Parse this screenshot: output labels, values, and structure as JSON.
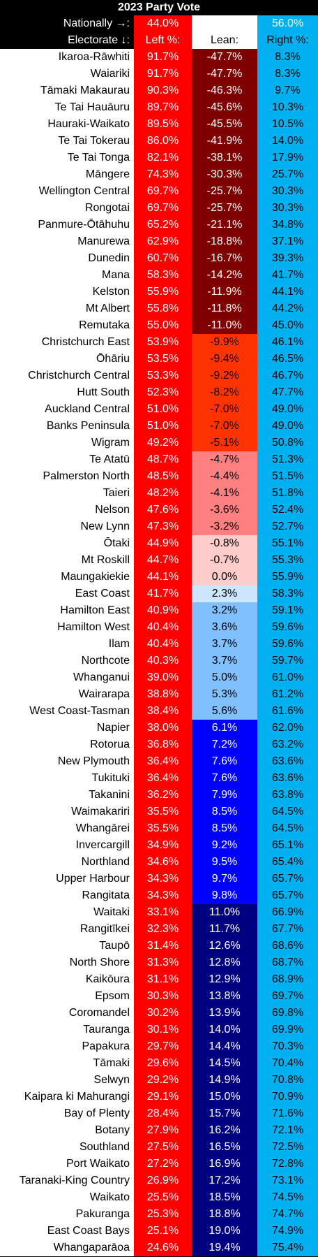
{
  "title": "2023 Party Vote",
  "nationally_label": "Nationally →:",
  "electorate_label": "Electorate ↓:",
  "national_left": "44.0%",
  "national_right": "56.0%",
  "header_left": "Left %:",
  "header_lean": "Lean:",
  "header_right": "Right %:",
  "colors": {
    "left": "#ff0000",
    "right": "#00b0f0",
    "lean_scale": [
      {
        "min": 10,
        "bg": "#7f0000",
        "fg": "#ffffff"
      },
      {
        "min": 5,
        "bg": "#ff3300",
        "fg": "#000000"
      },
      {
        "min": 2,
        "bg": "#ff8080",
        "fg": "#000000"
      },
      {
        "min": 0,
        "bg": "#ffcccc",
        "fg": "#000000"
      },
      {
        "min": -2.5,
        "bg": "#cce6ff",
        "fg": "#000000"
      },
      {
        "min": -6,
        "bg": "#80c0ff",
        "fg": "#000000"
      },
      {
        "min": -10,
        "bg": "#0000ff",
        "fg": "#ffffff"
      },
      {
        "min": -100,
        "bg": "#000080",
        "fg": "#ffffff"
      }
    ]
  },
  "chart_data": {
    "type": "table",
    "title": "2023 Party Vote",
    "columns": [
      "Electorate",
      "Left %",
      "Lean",
      "Right %"
    ],
    "national": {
      "left": 44.0,
      "right": 56.0
    },
    "rows": [
      {
        "name": "Ikaroa-Rāwhiti",
        "left": "91.7%",
        "lean": "-47.7%",
        "right": "8.3%"
      },
      {
        "name": "Waiariki",
        "left": "91.7%",
        "lean": "-47.7%",
        "right": "8.3%"
      },
      {
        "name": "Tāmaki Makaurau",
        "left": "90.3%",
        "lean": "-46.3%",
        "right": "9.7%"
      },
      {
        "name": "Te Tai Hauāuru",
        "left": "89.7%",
        "lean": "-45.6%",
        "right": "10.3%"
      },
      {
        "name": "Hauraki-Waikato",
        "left": "89.5%",
        "lean": "-45.5%",
        "right": "10.5%"
      },
      {
        "name": "Te Tai Tokerau",
        "left": "86.0%",
        "lean": "-41.9%",
        "right": "14.0%"
      },
      {
        "name": "Te Tai Tonga",
        "left": "82.1%",
        "lean": "-38.1%",
        "right": "17.9%"
      },
      {
        "name": "Māngere",
        "left": "74.3%",
        "lean": "-30.3%",
        "right": "25.7%"
      },
      {
        "name": "Wellington Central",
        "left": "69.7%",
        "lean": "-25.7%",
        "right": "30.3%"
      },
      {
        "name": "Rongotai",
        "left": "69.7%",
        "lean": "-25.7%",
        "right": "30.3%"
      },
      {
        "name": "Panmure-Ōtāhuhu",
        "left": "65.2%",
        "lean": "-21.1%",
        "right": "34.8%"
      },
      {
        "name": "Manurewa",
        "left": "62.9%",
        "lean": "-18.8%",
        "right": "37.1%"
      },
      {
        "name": "Dunedin",
        "left": "60.7%",
        "lean": "-16.7%",
        "right": "39.3%"
      },
      {
        "name": "Mana",
        "left": "58.3%",
        "lean": "-14.2%",
        "right": "41.7%"
      },
      {
        "name": "Kelston",
        "left": "55.9%",
        "lean": "-11.9%",
        "right": "44.1%"
      },
      {
        "name": "Mt Albert",
        "left": "55.8%",
        "lean": "-11.8%",
        "right": "44.2%"
      },
      {
        "name": "Remutaka",
        "left": "55.0%",
        "lean": "-11.0%",
        "right": "45.0%"
      },
      {
        "name": "Christchurch East",
        "left": "53.9%",
        "lean": "-9.9%",
        "right": "46.1%"
      },
      {
        "name": "Ōhāriu",
        "left": "53.5%",
        "lean": "-9.4%",
        "right": "46.5%"
      },
      {
        "name": "Christchurch Central",
        "left": "53.3%",
        "lean": "-9.2%",
        "right": "46.7%"
      },
      {
        "name": "Hutt South",
        "left": "52.3%",
        "lean": "-8.2%",
        "right": "47.7%"
      },
      {
        "name": "Auckland Central",
        "left": "51.0%",
        "lean": "-7.0%",
        "right": "49.0%"
      },
      {
        "name": "Banks Peninsula",
        "left": "51.0%",
        "lean": "-7.0%",
        "right": "49.0%"
      },
      {
        "name": "Wigram",
        "left": "49.2%",
        "lean": "-5.1%",
        "right": "50.8%"
      },
      {
        "name": "Te Atatū",
        "left": "48.7%",
        "lean": "-4.7%",
        "right": "51.3%"
      },
      {
        "name": "Palmerston North",
        "left": "48.5%",
        "lean": "-4.4%",
        "right": "51.5%"
      },
      {
        "name": "Taieri",
        "left": "48.2%",
        "lean": "-4.1%",
        "right": "51.8%"
      },
      {
        "name": "Nelson",
        "left": "47.6%",
        "lean": "-3.6%",
        "right": "52.4%"
      },
      {
        "name": "New Lynn",
        "left": "47.3%",
        "lean": "-3.2%",
        "right": "52.7%"
      },
      {
        "name": "Ōtaki",
        "left": "44.9%",
        "lean": "-0.8%",
        "right": "55.1%"
      },
      {
        "name": "Mt Roskill",
        "left": "44.7%",
        "lean": "-0.7%",
        "right": "55.3%"
      },
      {
        "name": "Maungakiekie",
        "left": "44.1%",
        "lean": "0.0%",
        "right": "55.9%"
      },
      {
        "name": "East Coast",
        "left": "41.7%",
        "lean": "2.3%",
        "right": "58.3%"
      },
      {
        "name": "Hamilton East",
        "left": "40.9%",
        "lean": "3.2%",
        "right": "59.1%"
      },
      {
        "name": "Hamilton West",
        "left": "40.4%",
        "lean": "3.6%",
        "right": "59.6%"
      },
      {
        "name": "Ilam",
        "left": "40.4%",
        "lean": "3.7%",
        "right": "59.6%"
      },
      {
        "name": "Northcote",
        "left": "40.3%",
        "lean": "3.7%",
        "right": "59.7%"
      },
      {
        "name": "Whanganui",
        "left": "39.0%",
        "lean": "5.0%",
        "right": "61.0%"
      },
      {
        "name": "Wairarapa",
        "left": "38.8%",
        "lean": "5.3%",
        "right": "61.2%"
      },
      {
        "name": "West Coast-Tasman",
        "left": "38.4%",
        "lean": "5.6%",
        "right": "61.6%"
      },
      {
        "name": "Napier",
        "left": "38.0%",
        "lean": "6.1%",
        "right": "62.0%"
      },
      {
        "name": "Rotorua",
        "left": "36.8%",
        "lean": "7.2%",
        "right": "63.2%"
      },
      {
        "name": "New Plymouth",
        "left": "36.4%",
        "lean": "7.6%",
        "right": "63.6%"
      },
      {
        "name": "Tukituki",
        "left": "36.4%",
        "lean": "7.6%",
        "right": "63.6%"
      },
      {
        "name": "Takanini",
        "left": "36.2%",
        "lean": "7.9%",
        "right": "63.8%"
      },
      {
        "name": "Waimakariri",
        "left": "35.5%",
        "lean": "8.5%",
        "right": "64.5%"
      },
      {
        "name": "Whangārei",
        "left": "35.5%",
        "lean": "8.5%",
        "right": "64.5%"
      },
      {
        "name": "Invercargill",
        "left": "34.9%",
        "lean": "9.2%",
        "right": "65.1%"
      },
      {
        "name": "Northland",
        "left": "34.6%",
        "lean": "9.5%",
        "right": "65.4%"
      },
      {
        "name": "Upper Harbour",
        "left": "34.3%",
        "lean": "9.7%",
        "right": "65.7%"
      },
      {
        "name": "Rangitata",
        "left": "34.3%",
        "lean": "9.8%",
        "right": "65.7%"
      },
      {
        "name": "Waitaki",
        "left": "33.1%",
        "lean": "11.0%",
        "right": "66.9%"
      },
      {
        "name": "Rangitīkei",
        "left": "32.3%",
        "lean": "11.7%",
        "right": "67.7%"
      },
      {
        "name": "Taupō",
        "left": "31.4%",
        "lean": "12.6%",
        "right": "68.6%"
      },
      {
        "name": "North Shore",
        "left": "31.3%",
        "lean": "12.8%",
        "right": "68.7%"
      },
      {
        "name": "Kaikōura",
        "left": "31.1%",
        "lean": "12.9%",
        "right": "68.9%"
      },
      {
        "name": "Epsom",
        "left": "30.3%",
        "lean": "13.8%",
        "right": "69.7%"
      },
      {
        "name": "Coromandel",
        "left": "30.2%",
        "lean": "13.9%",
        "right": "69.8%"
      },
      {
        "name": "Tauranga",
        "left": "30.1%",
        "lean": "14.0%",
        "right": "69.9%"
      },
      {
        "name": "Papakura",
        "left": "29.7%",
        "lean": "14.4%",
        "right": "70.3%"
      },
      {
        "name": "Tāmaki",
        "left": "29.6%",
        "lean": "14.5%",
        "right": "70.4%"
      },
      {
        "name": "Selwyn",
        "left": "29.2%",
        "lean": "14.9%",
        "right": "70.8%"
      },
      {
        "name": "Kaipara ki Mahurangi",
        "left": "29.1%",
        "lean": "15.0%",
        "right": "70.9%"
      },
      {
        "name": "Bay of Plenty",
        "left": "28.4%",
        "lean": "15.7%",
        "right": "71.6%"
      },
      {
        "name": "Botany",
        "left": "27.9%",
        "lean": "16.2%",
        "right": "72.1%"
      },
      {
        "name": "Southland",
        "left": "27.5%",
        "lean": "16.5%",
        "right": "72.5%"
      },
      {
        "name": "Port Waikato",
        "left": "27.2%",
        "lean": "16.9%",
        "right": "72.8%"
      },
      {
        "name": "Taranaki-King Country",
        "left": "26.9%",
        "lean": "17.2%",
        "right": "73.1%"
      },
      {
        "name": "Waikato",
        "left": "25.5%",
        "lean": "18.5%",
        "right": "74.5%"
      },
      {
        "name": "Pakuranga",
        "left": "25.3%",
        "lean": "18.8%",
        "right": "74.7%"
      },
      {
        "name": "East Coast Bays",
        "left": "25.1%",
        "lean": "19.0%",
        "right": "74.9%"
      },
      {
        "name": "Whangaparāoa",
        "left": "24.6%",
        "lean": "19.4%",
        "right": "75.4%"
      }
    ]
  }
}
